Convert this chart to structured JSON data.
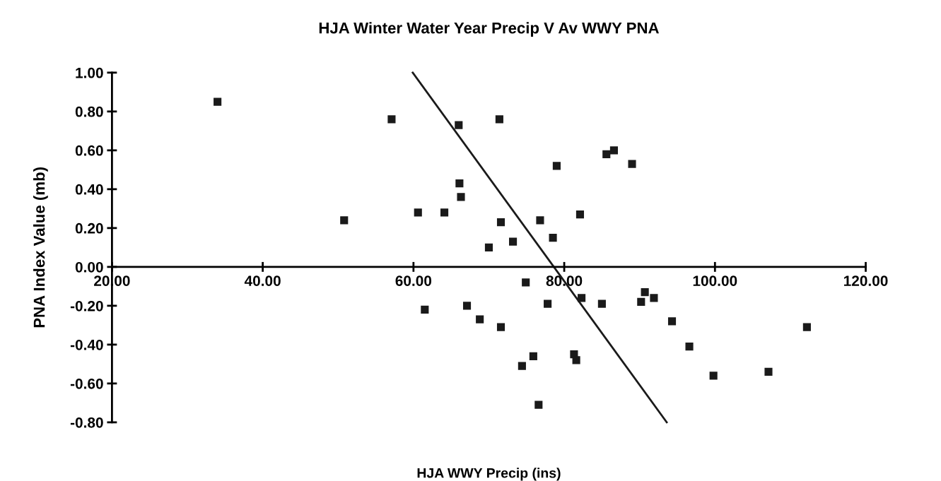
{
  "chart_data": {
    "type": "scatter",
    "title": "HJA Winter Water Year Precip V Av WWY PNA",
    "xlabel": "HJA WWY Precip (ins)",
    "ylabel": "PNA Index Value (mb)",
    "marker": "square",
    "grid": false,
    "xlim": [
      20,
      120
    ],
    "ylim": [
      -0.8,
      1.0
    ],
    "xticks": [
      {
        "value": 20,
        "label": "20.00"
      },
      {
        "value": 40,
        "label": "40.00"
      },
      {
        "value": 60,
        "label": "60.00"
      },
      {
        "value": 80,
        "label": "80.00"
      },
      {
        "value": 100,
        "label": "100.00"
      },
      {
        "value": 120,
        "label": "120.00"
      }
    ],
    "yticks": [
      {
        "value": -0.8,
        "label": "-0.80"
      },
      {
        "value": -0.6,
        "label": "-0.60"
      },
      {
        "value": -0.4,
        "label": "-0.40"
      },
      {
        "value": -0.2,
        "label": "-0.20"
      },
      {
        "value": 0,
        "label": "0.00"
      },
      {
        "value": 0.2,
        "label": "0.20"
      },
      {
        "value": 0.4,
        "label": "0.40"
      },
      {
        "value": 0.6,
        "label": "0.60"
      },
      {
        "value": 0.8,
        "label": "0.80"
      },
      {
        "value": 1.0,
        "label": "1.00"
      }
    ],
    "series": [
      {
        "color": "#1a1a1a",
        "x": [
          34.0,
          50.8,
          57.1,
          60.6,
          61.5,
          64.1,
          66.0,
          66.1,
          66.3,
          67.1,
          68.8,
          70.0,
          71.4,
          71.6,
          71.6,
          73.2,
          74.4,
          74.9,
          75.9,
          76.6,
          76.8,
          77.8,
          78.5,
          79.0,
          81.3,
          81.6,
          82.1,
          82.3,
          85.0,
          85.6,
          86.6,
          89.0,
          90.2,
          90.7,
          91.9,
          94.3,
          96.6,
          99.8,
          107.1,
          112.2
        ],
        "values": [
          0.85,
          0.24,
          0.76,
          0.28,
          -0.22,
          0.28,
          0.73,
          0.43,
          0.36,
          -0.2,
          -0.27,
          0.1,
          0.76,
          0.23,
          -0.31,
          0.13,
          -0.51,
          -0.08,
          -0.46,
          -0.71,
          0.24,
          -0.19,
          0.15,
          0.52,
          -0.45,
          -0.48,
          0.27,
          -0.16,
          -0.19,
          0.58,
          0.6,
          0.53,
          -0.18,
          -0.13,
          -0.16,
          -0.28,
          -0.41,
          -0.56,
          -0.54,
          -0.31
        ]
      },
      {
        "type": "line",
        "marker": "none",
        "color": "#1a1a1a",
        "x": [
          59.9,
          93.6
        ],
        "values": [
          1.0,
          -0.8
        ]
      }
    ]
  }
}
